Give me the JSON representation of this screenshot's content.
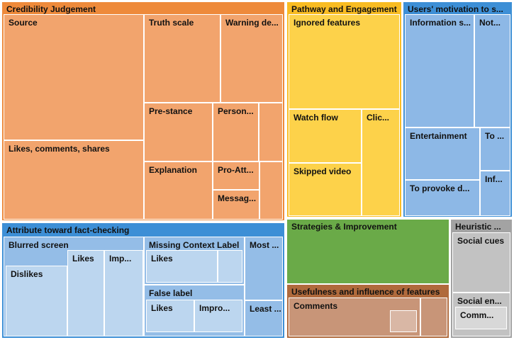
{
  "treemap": {
    "credibility": {
      "label": "Credibility Judgement",
      "source": "Source",
      "truth_scale": "Truth scale",
      "warning": "Warning de...",
      "pre_stance": "Pre-stance",
      "person": "Person...",
      "likes_comments_shares": "Likes, comments, shares",
      "explanation": "Explanation",
      "pro_att": "Pro-Att...",
      "messag": "Messag..."
    },
    "pathway": {
      "label": "Pathway and Engagement",
      "ignored_features": "Ignored features",
      "watch_flow": "Watch flow",
      "clic": "Clic...",
      "skipped_video": "Skipped video"
    },
    "motivation": {
      "label": "Users' motivation to s...",
      "information": "Information s...",
      "not": "Not...",
      "entertainment": "Entertainment",
      "to": "To ...",
      "inf": "Inf...",
      "provoke": "To provoke d..."
    },
    "attribute": {
      "label": "Attribute toward fact-checking",
      "blurred_screen": "Blurred screen",
      "likes": "Likes",
      "imp": "Imp...",
      "dislikes": "Dislikes",
      "missing_context": "Missing Context Label",
      "missing_likes": "Likes",
      "false_label": "False label",
      "false_likes": "Likes",
      "impro": "Impro...",
      "most": "Most ...",
      "least": "Least ..."
    },
    "strategies": {
      "label": "Strategies & Improvement"
    },
    "usefulness": {
      "label": "Usefulness and influence of features",
      "comments": "Comments"
    },
    "heuristic": {
      "label": "Heuristic ...",
      "social_cues": "Social cues",
      "social_en": "Social en...",
      "comm": "Comm..."
    }
  }
}
